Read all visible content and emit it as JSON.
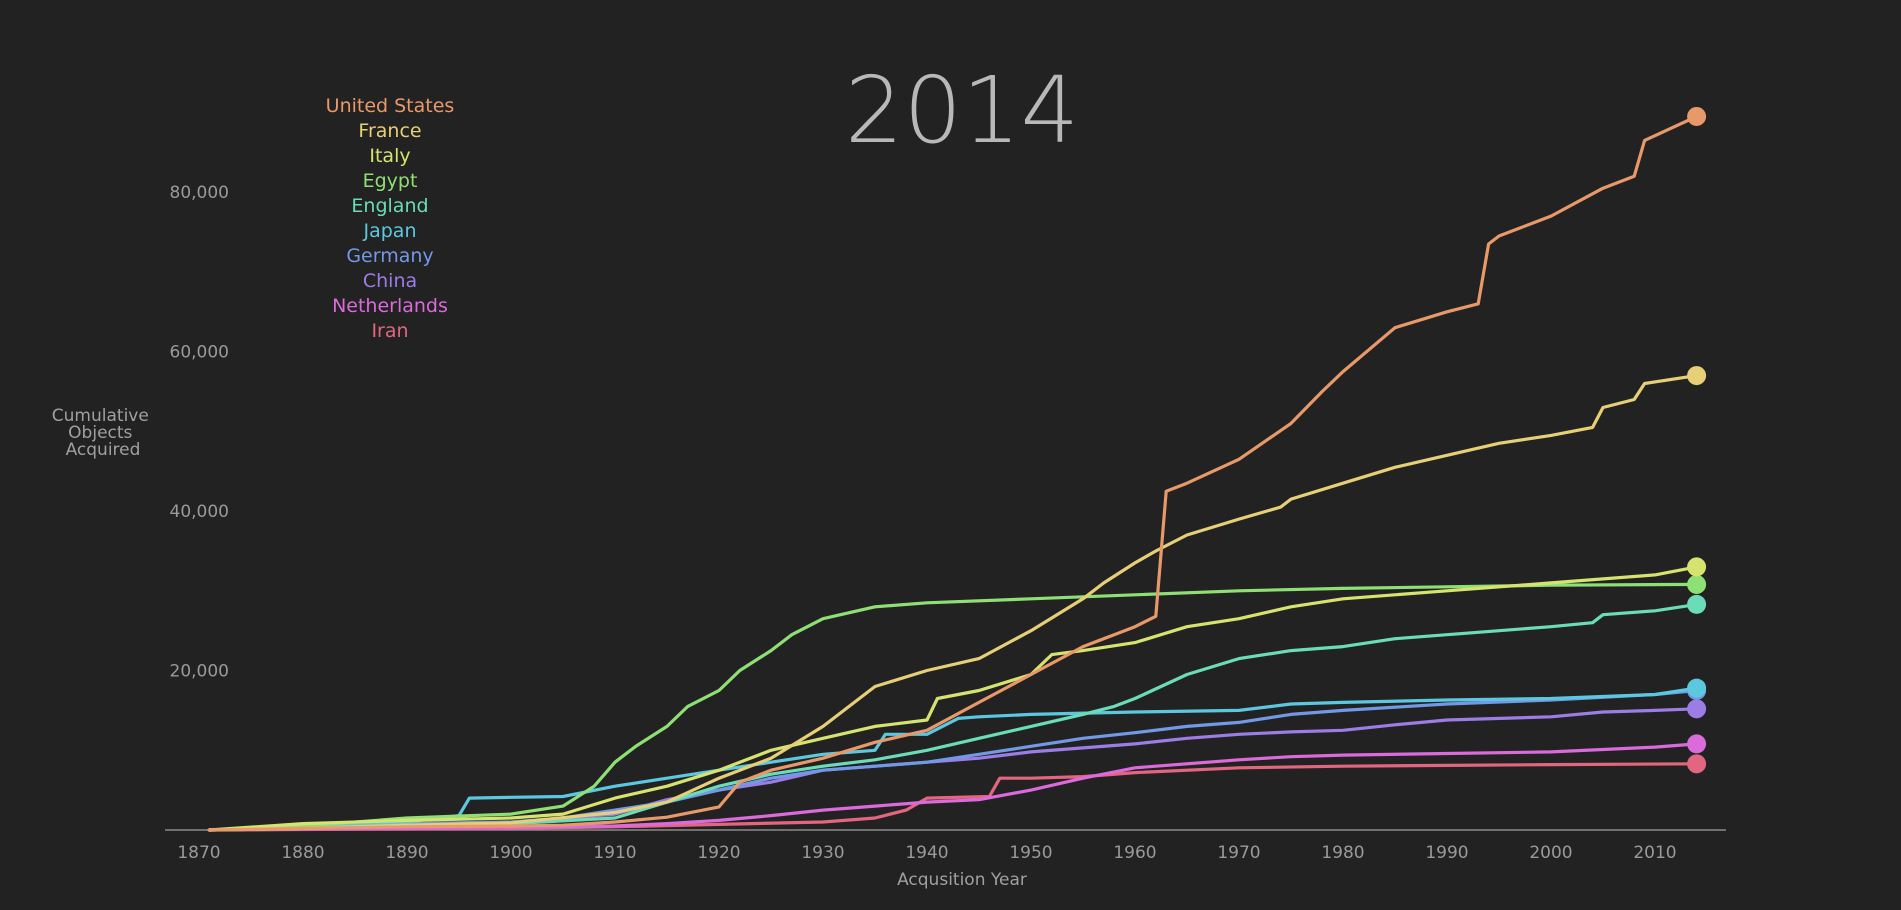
{
  "chart_data": {
    "type": "line",
    "title": "2014",
    "xlabel": "Acqusition Year",
    "ylabel": [
      "Cumulative",
      "Objects",
      "Acquired"
    ],
    "xlim": [
      1870,
      2015
    ],
    "ylim": [
      0,
      90000
    ],
    "x_ticks": [
      "1870",
      "1880",
      "1890",
      "1900",
      "1910",
      "1920",
      "1930",
      "1940",
      "1950",
      "1960",
      "1970",
      "1980",
      "1990",
      "2000",
      "2010"
    ],
    "y_ticks": [
      "20,000",
      "40,000",
      "60,000",
      "80,000"
    ],
    "grid": false,
    "legend_position": "top-left",
    "series": [
      {
        "name": "United States",
        "color": "#E8996A",
        "x": [
          1871,
          1880,
          1890,
          1900,
          1905,
          1910,
          1915,
          1920,
          1922,
          1925,
          1930,
          1935,
          1940,
          1945,
          1950,
          1955,
          1958,
          1960,
          1962,
          1963,
          1965,
          1970,
          1975,
          1978,
          1980,
          1985,
          1990,
          1993,
          1994,
          1995,
          2000,
          2005,
          2008,
          2009,
          2014
        ],
        "y": [
          0,
          200,
          400,
          500,
          600,
          1000,
          1600,
          2900,
          6000,
          7500,
          9000,
          11000,
          12500,
          16000,
          19500,
          23000,
          24500,
          25500,
          26800,
          42500,
          43500,
          46500,
          51000,
          55000,
          57500,
          63000,
          65000,
          66000,
          73500,
          74500,
          77000,
          80500,
          82000,
          86500,
          89500
        ]
      },
      {
        "name": "France",
        "color": "#E6CF76",
        "x": [
          1871,
          1880,
          1890,
          1900,
          1910,
          1915,
          1920,
          1925,
          1930,
          1935,
          1940,
          1945,
          1950,
          1955,
          1957,
          1960,
          1962,
          1965,
          1970,
          1974,
          1975,
          1980,
          1985,
          1990,
          1995,
          2000,
          2004,
          2005,
          2008,
          2009,
          2014
        ],
        "y": [
          0,
          200,
          600,
          900,
          2200,
          3500,
          6500,
          9000,
          13000,
          18000,
          20000,
          21500,
          25000,
          29000,
          31000,
          33500,
          35000,
          37000,
          39000,
          40500,
          41500,
          43500,
          45500,
          47000,
          48500,
          49500,
          50500,
          53000,
          54000,
          56000,
          57000
        ]
      },
      {
        "name": "Italy",
        "color": "#D6E36F",
        "x": [
          1871,
          1880,
          1890,
          1900,
          1905,
          1910,
          1915,
          1920,
          1925,
          1930,
          1935,
          1940,
          1941,
          1945,
          1950,
          1952,
          1955,
          1960,
          1965,
          1970,
          1975,
          1980,
          1990,
          2000,
          2010,
          2014
        ],
        "y": [
          0,
          800,
          1200,
          1500,
          2000,
          4000,
          5500,
          7500,
          10000,
          11500,
          13000,
          13800,
          16500,
          17500,
          19500,
          22000,
          22500,
          23500,
          25500,
          26500,
          28000,
          29000,
          30000,
          31000,
          32000,
          33000
        ]
      },
      {
        "name": "Egypt",
        "color": "#8FE074",
        "x": [
          1871,
          1880,
          1890,
          1900,
          1905,
          1908,
          1910,
          1912,
          1915,
          1917,
          1920,
          1922,
          1925,
          1927,
          1930,
          1935,
          1940,
          1950,
          1960,
          1970,
          1980,
          1990,
          2000,
          2014
        ],
        "y": [
          0,
          500,
          1500,
          2000,
          3000,
          5500,
          8500,
          10500,
          13000,
          15500,
          17500,
          20000,
          22500,
          24500,
          26500,
          28000,
          28500,
          29000,
          29500,
          30000,
          30300,
          30500,
          30700,
          30800
        ]
      },
      {
        "name": "England",
        "color": "#6ADCB8",
        "x": [
          1871,
          1880,
          1890,
          1900,
          1910,
          1915,
          1920,
          1925,
          1930,
          1935,
          1940,
          1945,
          1950,
          1955,
          1958,
          1960,
          1965,
          1970,
          1975,
          1980,
          1985,
          1990,
          2000,
          2004,
          2005,
          2010,
          2014
        ],
        "y": [
          0,
          200,
          500,
          800,
          1500,
          3500,
          5500,
          7000,
          8000,
          8800,
          10000,
          11500,
          13000,
          14500,
          15500,
          16500,
          19500,
          21500,
          22500,
          23000,
          24000,
          24500,
          25500,
          26000,
          27000,
          27500,
          28300
        ]
      },
      {
        "name": "Japan",
        "color": "#5CC8DF",
        "x": [
          1871,
          1880,
          1890,
          1895,
          1896,
          1900,
          1905,
          1910,
          1915,
          1920,
          1925,
          1930,
          1935,
          1936,
          1940,
          1943,
          1945,
          1950,
          1960,
          1970,
          1975,
          1980,
          1990,
          2000,
          2010,
          2014
        ],
        "y": [
          0,
          200,
          1000,
          1800,
          4000,
          4100,
          4200,
          5500,
          6500,
          7500,
          8500,
          9500,
          10000,
          12000,
          12000,
          14000,
          14200,
          14500,
          14800,
          15000,
          15800,
          16000,
          16300,
          16500,
          17000,
          17800
        ]
      },
      {
        "name": "Germany",
        "color": "#7199E6",
        "x": [
          1871,
          1880,
          1890,
          1900,
          1905,
          1910,
          1915,
          1920,
          1925,
          1930,
          1935,
          1940,
          1945,
          1950,
          1955,
          1960,
          1965,
          1970,
          1975,
          1980,
          1990,
          2000,
          2010,
          2014
        ],
        "y": [
          0,
          500,
          800,
          1000,
          1500,
          2500,
          3500,
          5000,
          6500,
          7500,
          8000,
          8500,
          9500,
          10500,
          11500,
          12200,
          13000,
          13500,
          14500,
          15000,
          15800,
          16300,
          17000,
          17500
        ]
      },
      {
        "name": "China",
        "color": "#9B7DE5",
        "x": [
          1871,
          1880,
          1890,
          1900,
          1910,
          1915,
          1920,
          1925,
          1930,
          1935,
          1940,
          1945,
          1950,
          1955,
          1960,
          1965,
          1970,
          1975,
          1980,
          1985,
          1990,
          2000,
          2005,
          2010,
          2014
        ],
        "y": [
          0,
          300,
          600,
          900,
          2000,
          3800,
          5000,
          6000,
          7500,
          8000,
          8500,
          9000,
          9800,
          10300,
          10800,
          11500,
          12000,
          12300,
          12500,
          13200,
          13800,
          14200,
          14800,
          15000,
          15200
        ]
      },
      {
        "name": "Netherlands",
        "color": "#DB6ADB",
        "x": [
          1871,
          1880,
          1900,
          1910,
          1915,
          1920,
          1925,
          1930,
          1935,
          1940,
          1945,
          1950,
          1955,
          1960,
          1970,
          1975,
          1980,
          1990,
          2000,
          2010,
          2014
        ],
        "y": [
          0,
          100,
          300,
          500,
          800,
          1200,
          1800,
          2500,
          3000,
          3500,
          3800,
          5000,
          6500,
          7800,
          8800,
          9200,
          9400,
          9600,
          9800,
          10400,
          10800
        ]
      },
      {
        "name": "Iran",
        "color": "#E36680",
        "x": [
          1871,
          1900,
          1910,
          1920,
          1930,
          1935,
          1938,
          1940,
          1946,
          1947,
          1950,
          1955,
          1960,
          1970,
          1980,
          1990,
          2000,
          2014
        ],
        "y": [
          0,
          200,
          400,
          700,
          1000,
          1500,
          2500,
          4000,
          4200,
          6500,
          6500,
          6700,
          7200,
          7800,
          8000,
          8100,
          8200,
          8300
        ]
      }
    ]
  }
}
